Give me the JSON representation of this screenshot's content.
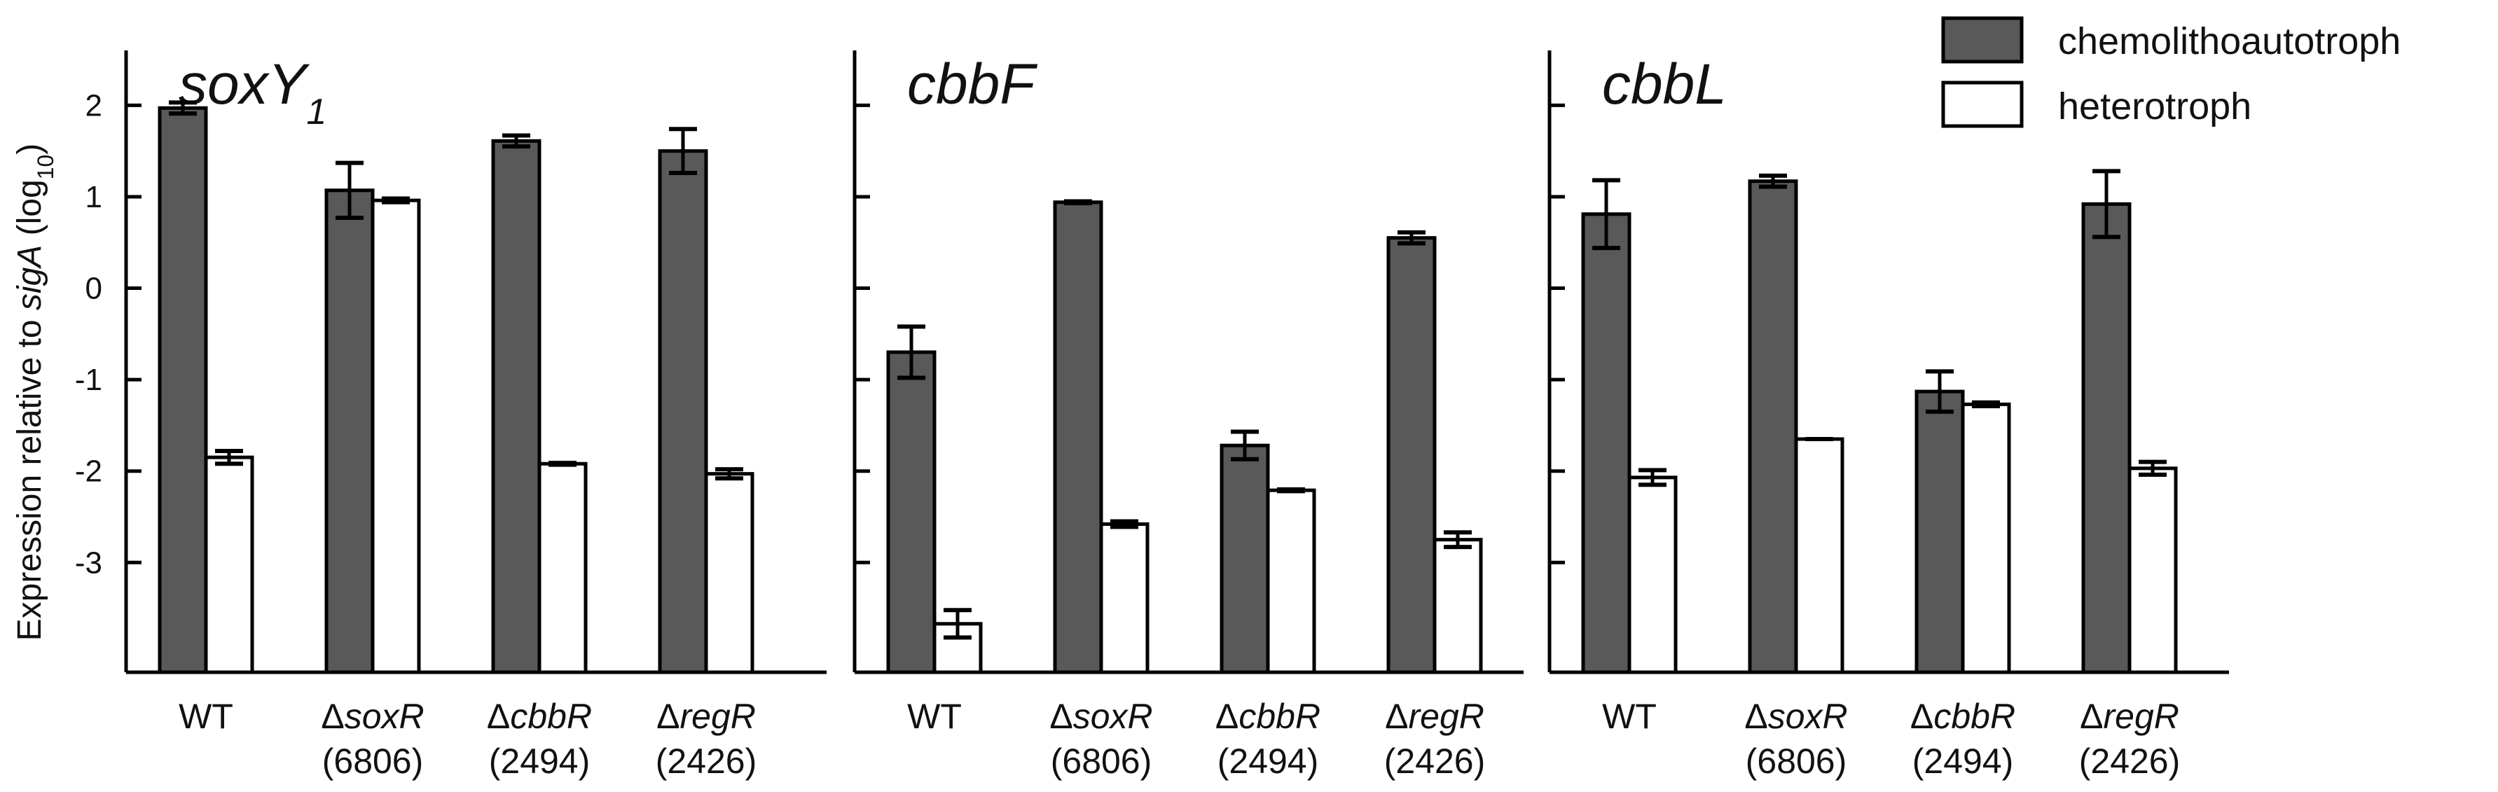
{
  "chart_data": {
    "type": "bar",
    "ylabel": "Expression relative to sigA (log10)",
    "ylabel_parts": {
      "prefix": "Expression relative to ",
      "gene": "sigA",
      "open": " (log",
      "sub": "10",
      "close": ")"
    },
    "ylim": [
      -4.2,
      2.6
    ],
    "yticks": [
      2,
      1,
      0,
      -1,
      -2,
      -3
    ],
    "ytick_labels": [
      "2",
      "1",
      "0",
      "-1",
      "-2",
      "-3"
    ],
    "legend": {
      "chemo": "chemolithoautotroph",
      "hetero": "heterotroph"
    },
    "colors": {
      "chemo": "#595959",
      "hetero": "#ffffff",
      "edge": "#000000"
    },
    "categories": [
      {
        "line1_prefix": "",
        "line1_italic": "WT",
        "line1_is_plain": true,
        "line2": ""
      },
      {
        "line1_prefix": "Δ",
        "line1_italic": "soxR",
        "line1_is_plain": false,
        "line2": "(6806)"
      },
      {
        "line1_prefix": "Δ",
        "line1_italic": "cbbR",
        "line1_is_plain": false,
        "line2": "(2494)"
      },
      {
        "line1_prefix": "Δ",
        "line1_italic": "regR",
        "line1_is_plain": false,
        "line2": "(2426)"
      }
    ],
    "panels": [
      {
        "gene": "soxY",
        "gene_sub": "1",
        "show_tick_labels": true,
        "series": [
          {
            "name": "chemolithoautotroph",
            "values": [
              1.97,
              1.07,
              1.61,
              1.5
            ],
            "errors": [
              0.06,
              0.3,
              0.06,
              0.24
            ]
          },
          {
            "name": "heterotroph",
            "values": [
              -1.85,
              0.96,
              -1.92,
              -2.03
            ],
            "errors": [
              0.07,
              0.02,
              0.01,
              0.05
            ]
          }
        ]
      },
      {
        "gene": "cbbF",
        "gene_sub": "",
        "show_tick_labels": false,
        "series": [
          {
            "name": "chemolithoautotroph",
            "values": [
              -0.7,
              0.94,
              -1.72,
              0.55
            ],
            "errors": [
              0.28,
              0.01,
              0.15,
              0.06
            ]
          },
          {
            "name": "heterotroph",
            "values": [
              -3.67,
              -2.58,
              -2.21,
              -2.75
            ],
            "errors": [
              0.15,
              0.03,
              0.01,
              0.08
            ]
          }
        ]
      },
      {
        "gene": "cbbL",
        "gene_sub": "",
        "show_tick_labels": false,
        "series": [
          {
            "name": "chemolithoautotroph",
            "values": [
              0.81,
              1.17,
              -1.13,
              0.92
            ],
            "errors": [
              0.37,
              0.06,
              0.22,
              0.36
            ]
          },
          {
            "name": "heterotroph",
            "values": [
              -2.07,
              -1.65,
              -1.27,
              -1.97
            ],
            "errors": [
              0.08,
              0.0,
              0.02,
              0.07
            ]
          }
        ]
      }
    ]
  }
}
